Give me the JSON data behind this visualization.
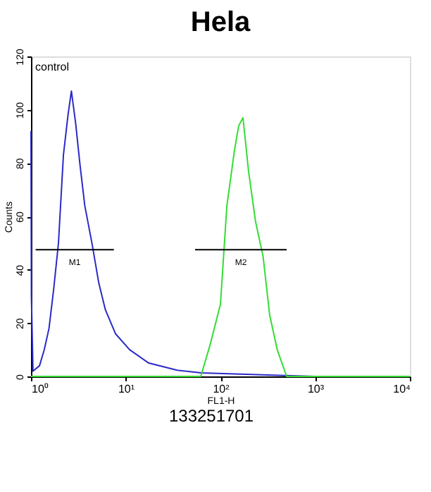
{
  "chart_data": {
    "type": "line",
    "title": "Hela",
    "xlabel": "FL1-H",
    "ylabel": "Counts",
    "log": "x",
    "marker": "none",
    "line_style": "solid",
    "xlim": [
      1,
      10000
    ],
    "xticks": [
      {
        "value": 1,
        "label": "10⁰"
      },
      {
        "value": 10,
        "label": "10¹"
      },
      {
        "value": 100,
        "label": "10²"
      },
      {
        "value": 1000,
        "label": "10³"
      },
      {
        "value": 10000,
        "label": "10⁴"
      }
    ],
    "ylim": [
      0,
      120
    ],
    "yticks": [
      0,
      20,
      40,
      60,
      80,
      100,
      120
    ],
    "series": [
      {
        "color": "#2a2ac8",
        "x": [
          1,
          1.01,
          1.05,
          1.23,
          1.38,
          1.55,
          1.74,
          1.95,
          2.2,
          2.46,
          2.67,
          2.96,
          3.3,
          3.7,
          4.4,
          5.2,
          6.1,
          7.8,
          11,
          17.5,
          35,
          63,
          316,
          1000,
          10000
        ],
        "values": [
          92,
          30,
          2,
          4,
          10,
          18,
          33,
          50,
          83,
          98,
          107,
          95,
          79,
          64,
          50,
          35,
          25,
          16,
          10,
          5,
          2.3,
          1.3,
          0.5,
          0,
          0
        ]
      },
      {
        "color": "#33dd33",
        "x": [
          1,
          62,
          78,
          100,
          117,
          141,
          156,
          173,
          198,
          235,
          282,
          331,
          398,
          500,
          10000
        ],
        "values": [
          0,
          0,
          12,
          27,
          64,
          85,
          94,
          97,
          77,
          58,
          45,
          23,
          10,
          0,
          0
        ]
      },
      {
        "name": "M1",
        "color": "#000000",
        "x": [
          1.12,
          7.5
        ],
        "values": [
          47.5,
          47.5
        ]
      },
      {
        "name": "M2",
        "color": "#000000",
        "x": [
          54,
          500
        ],
        "values": [
          47.5,
          47.5
        ]
      }
    ],
    "annotations": [
      "control",
      "133251701"
    ]
  }
}
